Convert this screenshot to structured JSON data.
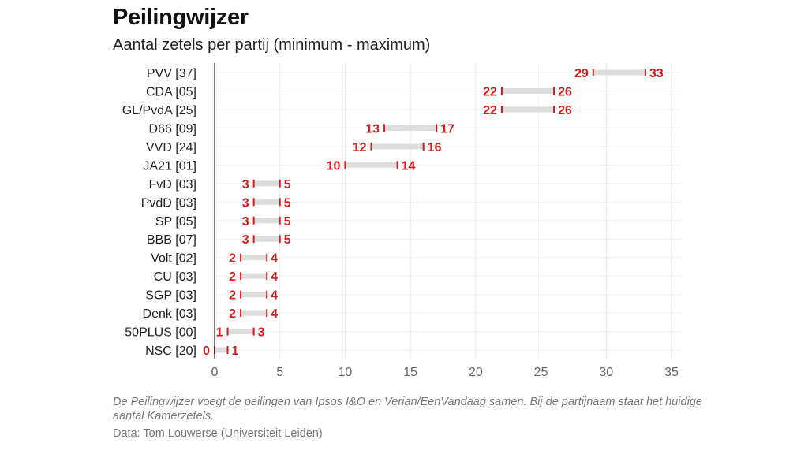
{
  "chart_data": {
    "type": "range-bar",
    "title": "Peilingwijzer",
    "subtitle": "Aantal zetels per partij (minimum - maximum)",
    "xlim": [
      0,
      35
    ],
    "xticks": [
      "0",
      "5",
      "10",
      "15",
      "20",
      "25",
      "30",
      "35"
    ],
    "categories": [
      "PVV [37]",
      "CDA [05]",
      "GL/PvdA [25]",
      "D66 [09]",
      "VVD [24]",
      "JA21 [01]",
      "FvD [03]",
      "PvdD [03]",
      "SP [05]",
      "BBB [07]",
      "Volt [02]",
      "CU [03]",
      "SGP [03]",
      "Denk [03]",
      "50PLUS [00]",
      "NSC [20]"
    ],
    "min": [
      29,
      22,
      22,
      13,
      12,
      10,
      3,
      3,
      3,
      3,
      2,
      2,
      2,
      2,
      1,
      0
    ],
    "max": [
      33,
      26,
      26,
      17,
      16,
      14,
      5,
      5,
      5,
      5,
      4,
      4,
      4,
      4,
      3,
      1
    ],
    "colors": {
      "marker": "#d7191c",
      "range": "#dddddd",
      "grid": "#e6e6e6"
    },
    "note": "De Peilingwijzer voegt de peilingen van Ipsos I&O en Verian/EenVandaag samen. Bij de partijnaam staat het huidige aantal Kamerzetels.",
    "source": "Data: Tom Louwerse (Universiteit Leiden)"
  }
}
